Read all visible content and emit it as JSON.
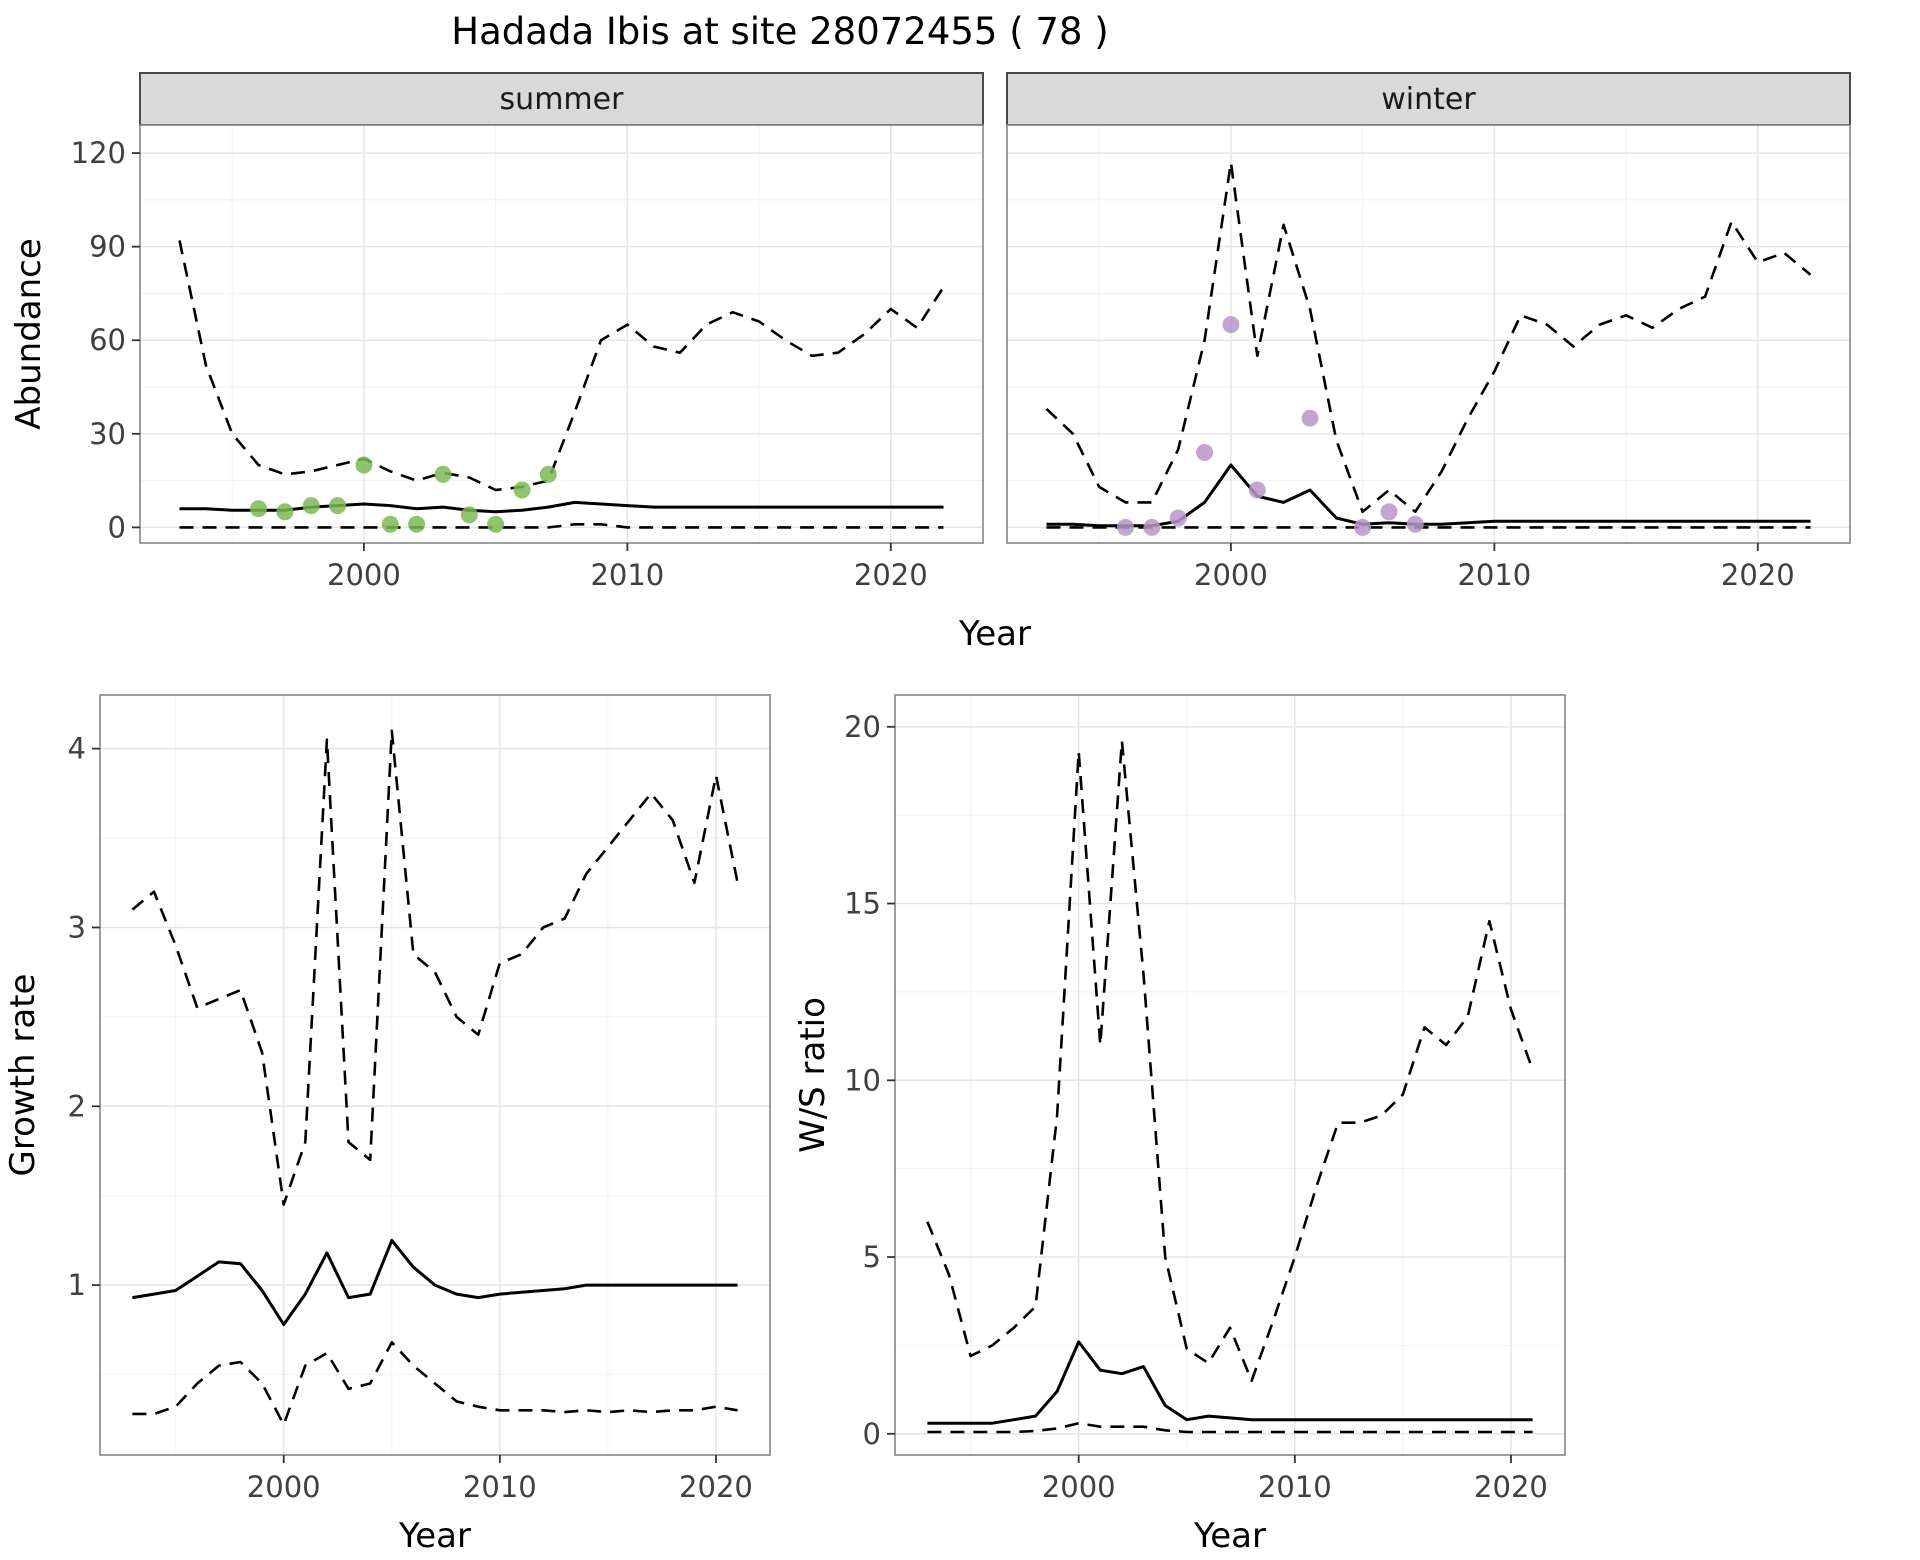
{
  "title": "Hadada Ibis at site 28072455 ( 78 )",
  "colors": {
    "line": "#000000",
    "summer_points": "#7CB954",
    "winter_points": "#B795C8",
    "strip_bg": "#D9D9D9",
    "strip_border": "#4A4A4A",
    "panel_border": "#858585",
    "grid_major": "#E5E5E5",
    "grid_minor": "#F2F2F2",
    "tick_text": "#404040",
    "axis_text": "#000000"
  },
  "chart_data": [
    {
      "id": "abundance",
      "type": "line",
      "title": "",
      "xlabel": "Year",
      "ylabel": "Abundance",
      "xlim": [
        1991.5,
        2023.5
      ],
      "ylim": [
        -5,
        129
      ],
      "xticks": [
        2000,
        2010,
        2020
      ],
      "yticks": [
        0,
        30,
        60,
        90,
        120
      ],
      "grid": "on",
      "legend": "none",
      "x": [
        1993,
        1994,
        1995,
        1996,
        1997,
        1998,
        1999,
        2000,
        2001,
        2002,
        2003,
        2004,
        2005,
        2006,
        2007,
        2008,
        2009,
        2010,
        2011,
        2012,
        2013,
        2014,
        2015,
        2016,
        2017,
        2018,
        2019,
        2020,
        2021,
        2022
      ],
      "facets": [
        {
          "label": "summer",
          "series": [
            {
              "name": "summer-upper-ci",
              "style": "dashed",
              "values": [
                92,
                52,
                30,
                20,
                17,
                18,
                20,
                22,
                18,
                15,
                17.5,
                16,
                12,
                13,
                15,
                37,
                60,
                65,
                58,
                56,
                65,
                69,
                66,
                60,
                55,
                56,
                62,
                70,
                64,
                77
              ]
            },
            {
              "name": "summer-median",
              "style": "solid",
              "values": [
                6,
                6,
                5.5,
                5.5,
                5.5,
                6.5,
                7,
                7.5,
                7,
                6,
                6.5,
                5.5,
                5,
                5.5,
                6.5,
                8,
                7.5,
                7,
                6.5,
                6.5,
                6.5,
                6.5,
                6.5,
                6.5,
                6.5,
                6.5,
                6.5,
                6.5,
                6.5,
                6.5
              ]
            },
            {
              "name": "summer-lower-ci",
              "style": "dashed",
              "values": [
                0,
                0,
                0,
                0,
                0,
                0,
                0,
                0,
                0,
                0,
                0,
                0,
                0,
                0,
                0,
                1,
                1,
                0,
                0,
                0,
                0,
                0,
                0,
                0,
                0,
                0,
                0,
                0,
                0,
                0
              ]
            }
          ],
          "points": {
            "name": "observed-summer",
            "color": "#7CB954",
            "x": [
              1996,
              1997,
              1998,
              1999,
              2000,
              2001,
              2002,
              2003,
              2004,
              2005,
              2006,
              2007
            ],
            "y": [
              6,
              5,
              7,
              7,
              20,
              1,
              1,
              17,
              4,
              1,
              12,
              17
            ]
          }
        },
        {
          "label": "winter",
          "series": [
            {
              "name": "winter-upper-ci",
              "style": "dashed",
              "values": [
                38,
                30,
                13,
                8,
                8,
                25,
                60,
                117,
                55,
                97,
                70,
                28,
                5,
                12,
                5,
                18,
                35,
                50,
                68,
                65,
                58,
                65,
                68,
                64,
                70,
                74,
                98,
                85,
                88,
                81
              ]
            },
            {
              "name": "winter-median",
              "style": "solid",
              "values": [
                1,
                1,
                0.5,
                0.5,
                0.5,
                2,
                8,
                20,
                10,
                8,
                12,
                3,
                1,
                1.5,
                1,
                1,
                1.5,
                2,
                2,
                2,
                2,
                2,
                2,
                2,
                2,
                2,
                2,
                2,
                2,
                2
              ]
            },
            {
              "name": "winter-lower-ci",
              "style": "dashed",
              "values": [
                0,
                0,
                0,
                0,
                0,
                0,
                0,
                0,
                0,
                0,
                0,
                0,
                0,
                0,
                0,
                0,
                0,
                0,
                0,
                0,
                0,
                0,
                0,
                0,
                0,
                0,
                0,
                0,
                0,
                0
              ]
            }
          ],
          "points": {
            "name": "observed-winter",
            "color": "#B795C8",
            "x": [
              1996,
              1997,
              1998,
              1999,
              2000,
              2001,
              2003,
              2005,
              2006,
              2007
            ],
            "y": [
              0,
              0,
              3,
              24,
              65,
              12,
              35,
              0,
              5,
              1
            ]
          }
        }
      ]
    },
    {
      "id": "growth_rate",
      "type": "line",
      "title": "",
      "xlabel": "Year",
      "ylabel": "Growth rate",
      "xlim": [
        1991.5,
        2022.5
      ],
      "ylim": [
        0.05,
        4.3
      ],
      "xticks": [
        2000,
        2010,
        2020
      ],
      "yticks": [
        1,
        2,
        3,
        4
      ],
      "grid": "on",
      "legend": "none",
      "x": [
        1993,
        1994,
        1995,
        1996,
        1997,
        1998,
        1999,
        2000,
        2001,
        2002,
        2003,
        2004,
        2005,
        2006,
        2007,
        2008,
        2009,
        2010,
        2011,
        2012,
        2013,
        2014,
        2015,
        2016,
        2017,
        2018,
        2019,
        2020,
        2021
      ],
      "series": [
        {
          "name": "growth-upper-ci",
          "style": "dashed",
          "values": [
            3.1,
            3.2,
            2.9,
            2.55,
            2.6,
            2.65,
            2.3,
            1.45,
            1.8,
            4.05,
            1.8,
            1.7,
            4.1,
            2.85,
            2.75,
            2.5,
            2.4,
            2.8,
            2.85,
            3.0,
            3.05,
            3.3,
            3.45,
            3.6,
            3.75,
            3.6,
            3.25,
            3.85,
            3.25
          ]
        },
        {
          "name": "growth-median",
          "style": "solid",
          "values": [
            0.93,
            0.95,
            0.97,
            1.05,
            1.13,
            1.12,
            0.97,
            0.78,
            0.95,
            1.18,
            0.93,
            0.95,
            1.25,
            1.1,
            1.0,
            0.95,
            0.93,
            0.95,
            0.96,
            0.97,
            0.98,
            1.0,
            1.0,
            1.0,
            1.0,
            1.0,
            1.0,
            1.0,
            1.0
          ]
        },
        {
          "name": "growth-lower-ci",
          "style": "dashed",
          "values": [
            0.28,
            0.28,
            0.32,
            0.45,
            0.55,
            0.57,
            0.45,
            0.22,
            0.55,
            0.62,
            0.42,
            0.45,
            0.68,
            0.55,
            0.45,
            0.35,
            0.32,
            0.3,
            0.3,
            0.3,
            0.29,
            0.3,
            0.29,
            0.3,
            0.29,
            0.3,
            0.3,
            0.32,
            0.3
          ]
        }
      ]
    },
    {
      "id": "ws_ratio",
      "type": "line",
      "title": "",
      "xlabel": "Year",
      "ylabel": "W/S ratio",
      "xlim": [
        1991.5,
        2022.5
      ],
      "ylim": [
        -0.6,
        20.9
      ],
      "xticks": [
        2000,
        2010,
        2020
      ],
      "yticks": [
        0,
        5,
        10,
        15,
        20
      ],
      "grid": "on",
      "legend": "none",
      "x": [
        1993,
        1994,
        1995,
        1996,
        1997,
        1998,
        1999,
        2000,
        2001,
        2002,
        2003,
        2004,
        2005,
        2006,
        2007,
        2008,
        2009,
        2010,
        2011,
        2012,
        2013,
        2014,
        2015,
        2016,
        2017,
        2018,
        2019,
        2020,
        2021
      ],
      "series": [
        {
          "name": "ws-upper-ci",
          "style": "dashed",
          "values": [
            6.0,
            4.5,
            2.2,
            2.5,
            3.0,
            3.6,
            9.0,
            19.3,
            11.0,
            19.6,
            13.0,
            5.0,
            2.4,
            2.0,
            3.0,
            1.5,
            3.2,
            5.0,
            7.0,
            8.8,
            8.8,
            9.0,
            9.6,
            11.5,
            11.0,
            11.8,
            14.5,
            12.0,
            10.3
          ]
        },
        {
          "name": "ws-median",
          "style": "solid",
          "values": [
            0.3,
            0.3,
            0.3,
            0.3,
            0.4,
            0.5,
            1.2,
            2.6,
            1.8,
            1.7,
            1.9,
            0.8,
            0.4,
            0.5,
            0.45,
            0.4,
            0.4,
            0.4,
            0.4,
            0.4,
            0.4,
            0.4,
            0.4,
            0.4,
            0.4,
            0.4,
            0.4,
            0.4,
            0.4
          ]
        },
        {
          "name": "ws-lower-ci",
          "style": "dashed",
          "values": [
            0.05,
            0.05,
            0.05,
            0.05,
            0.05,
            0.08,
            0.15,
            0.3,
            0.2,
            0.2,
            0.2,
            0.1,
            0.05,
            0.05,
            0.05,
            0.05,
            0.05,
            0.05,
            0.05,
            0.05,
            0.05,
            0.05,
            0.05,
            0.05,
            0.05,
            0.05,
            0.05,
            0.05,
            0.05
          ]
        }
      ]
    }
  ]
}
